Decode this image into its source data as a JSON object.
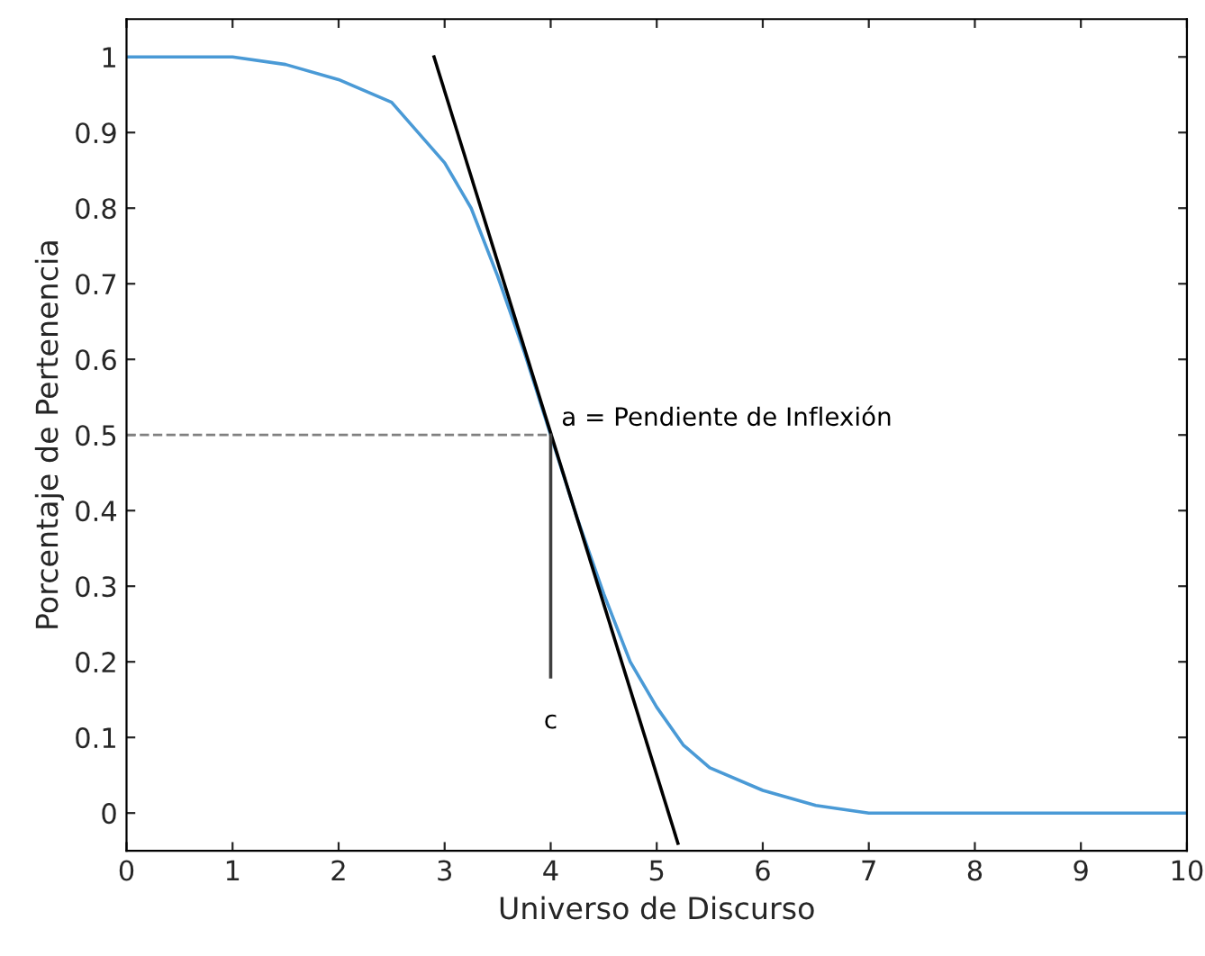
{
  "chart_data": {
    "type": "line",
    "xlabel": "Universo de Discurso",
    "ylabel": "Porcentaje de Pertenencia",
    "xlim": [
      0,
      10
    ],
    "xticks": [
      0,
      1,
      2,
      3,
      4,
      5,
      6,
      7,
      8,
      9,
      10
    ],
    "ylim": [
      -0.05,
      1.05
    ],
    "yticks": [
      0,
      0.1,
      0.2,
      0.3,
      0.4,
      0.5,
      0.6,
      0.7,
      0.8,
      0.9,
      1
    ],
    "grid": false,
    "legend": false,
    "series": [
      {
        "color": "#4a9ad6",
        "x": [
          0,
          1,
          1.5,
          2,
          2.5,
          3,
          3.25,
          3.5,
          3.75,
          4,
          4.25,
          4.5,
          4.75,
          5,
          5.25,
          5.5,
          6,
          6.5,
          7,
          8,
          9,
          10
        ],
        "values": [
          1,
          1,
          0.99,
          0.97,
          0.94,
          0.86,
          0.8,
          0.71,
          0.61,
          0.5,
          0.39,
          0.29,
          0.2,
          0.14,
          0.09,
          0.06,
          0.03,
          0.01,
          0,
          0,
          0,
          0
        ]
      },
      {
        "color": "#000000",
        "x": [
          2.9,
          5.2
        ],
        "values": [
          1.0,
          -0.04
        ]
      },
      {
        "color": "#808080",
        "line_style": "dashed",
        "x": [
          0,
          4
        ],
        "values": [
          0.5,
          0.5
        ]
      },
      {
        "color": "#404040",
        "x": [
          4,
          4
        ],
        "values": [
          0.5,
          0.18
        ]
      }
    ],
    "annotations": [
      "a = Pendiente de Inflexión",
      "c"
    ]
  }
}
